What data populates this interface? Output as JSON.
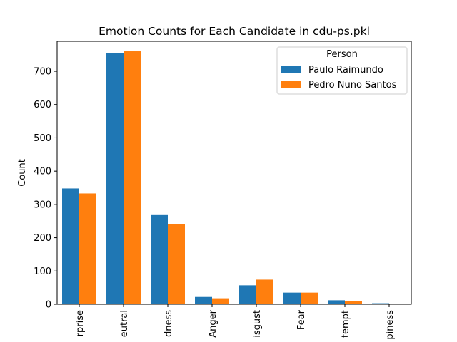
{
  "chart_data": {
    "type": "bar",
    "title": "Emotion Counts for Each Candidate in cdu-ps.pkl",
    "xlabel": "",
    "ylabel": "Count",
    "categories": [
      "rprise",
      "eutral",
      "dness",
      "Anger",
      "isgust",
      "Fear",
      "tempt",
      "piness"
    ],
    "series": [
      {
        "name": "Paulo Raimundo",
        "color": "#1f77b4",
        "values": [
          348,
          754,
          268,
          22,
          57,
          35,
          12,
          3
        ]
      },
      {
        "name": "Pedro Nuno Santos",
        "color": "#ff7f0e",
        "values": [
          333,
          760,
          240,
          18,
          74,
          35,
          9,
          1
        ]
      }
    ],
    "ylim": [
      0,
      790
    ],
    "yticks": [
      0,
      100,
      200,
      300,
      400,
      500,
      600,
      700
    ],
    "legend": {
      "title": "Person",
      "placement": "top-right"
    },
    "grid": false
  }
}
